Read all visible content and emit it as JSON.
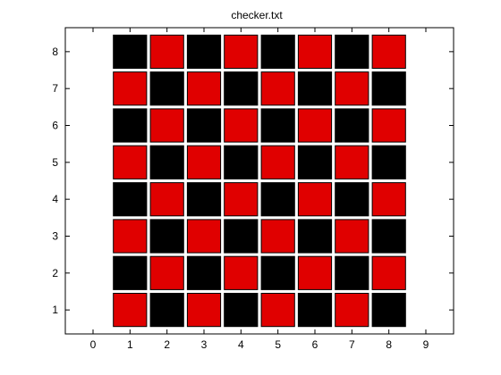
{
  "window": {
    "title": "checker.txt"
  },
  "chart_data": {
    "type": "heatmap",
    "title": "checker.txt",
    "xlabel": "",
    "ylabel": "",
    "xlim": [
      -0.75,
      9.75
    ],
    "ylim": [
      0.35,
      8.65
    ],
    "xticks": [
      0,
      1,
      2,
      3,
      4,
      5,
      6,
      7,
      8,
      9
    ],
    "yticks": [
      1,
      2,
      3,
      4,
      5,
      6,
      7,
      8
    ],
    "grid": false,
    "cell_size": 0.9,
    "color_map": {
      "0": "#e00000",
      "1": "#000000"
    },
    "rows_from_y1_to_y8": [
      [
        0,
        1,
        0,
        1,
        0,
        1,
        0,
        1
      ],
      [
        1,
        0,
        1,
        0,
        1,
        0,
        1,
        0
      ],
      [
        0,
        1,
        0,
        1,
        0,
        1,
        0,
        1
      ],
      [
        1,
        0,
        1,
        0,
        1,
        0,
        1,
        0
      ],
      [
        0,
        1,
        0,
        1,
        0,
        1,
        0,
        1
      ],
      [
        1,
        0,
        1,
        0,
        1,
        0,
        1,
        0
      ],
      [
        0,
        1,
        0,
        1,
        0,
        1,
        0,
        1
      ],
      [
        1,
        0,
        1,
        0,
        1,
        0,
        1,
        0
      ]
    ]
  }
}
